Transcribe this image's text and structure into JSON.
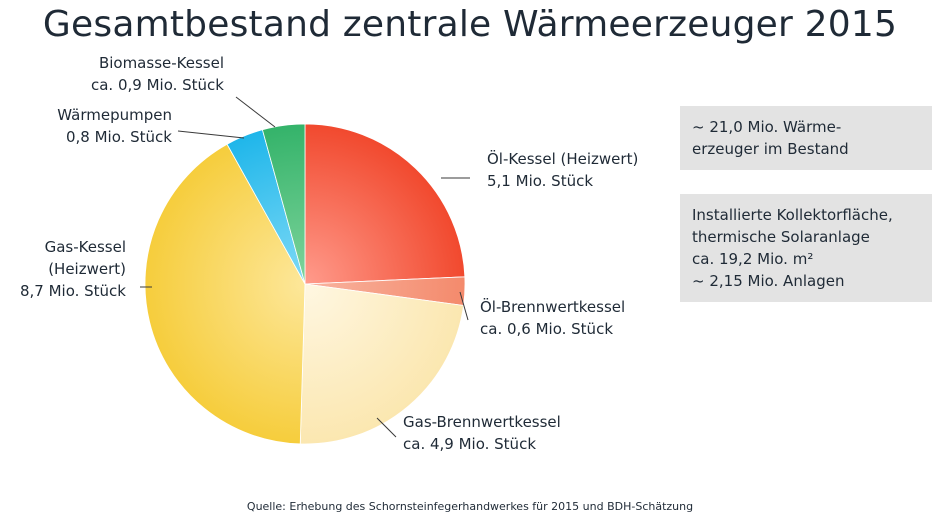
{
  "title": "Gesamtbestand zentrale Wärmeerzeuger 2015",
  "chart_data": {
    "type": "pie",
    "title": "Gesamtbestand zentrale Wärmeerzeuger 2015",
    "unit": "Mio. Stück",
    "slices": [
      {
        "name": "Öl-Kessel (Heizwert)",
        "value": 5.1,
        "value_label": "5,1 Mio. Stück",
        "color": "#f1492e",
        "color_light": "#ff9b8c",
        "label_lines": [
          "Öl-Kessel (Heizwert)",
          "5,1 Mio. Stück"
        ]
      },
      {
        "name": "Öl-Brennwertkessel",
        "value": 0.6,
        "value_label": "ca. 0,6 Mio. Stück",
        "color": "#f48a6c",
        "color_light": "#f8b4a0",
        "label_lines": [
          "Öl-Brennwertkessel",
          "ca. 0,6 Mio. Stück"
        ]
      },
      {
        "name": "Gas-Brennwertkessel",
        "value": 4.9,
        "value_label": "ca. 4,9 Mio. Stück",
        "color": "#fbe7b0",
        "color_light": "#fff7e2",
        "label_lines": [
          "Gas-Brennwertkessel",
          "ca. 4,9 Mio. Stück"
        ]
      },
      {
        "name": "Gas-Kessel (Heizwert)",
        "value": 8.7,
        "value_label": "8,7 Mio. Stück",
        "color": "#f6cd3c",
        "color_light": "#fde79a",
        "label_lines": [
          "Gas-Kessel",
          "(Heizwert)",
          "8,7 Mio. Stück"
        ]
      },
      {
        "name": "Wärmepumpen",
        "value": 0.8,
        "value_label": "0,8 Mio. Stück",
        "color": "#1fb6ea",
        "color_light": "#7fdaf6",
        "label_lines": [
          "Wärmepumpen",
          "0,8 Mio. Stück"
        ]
      },
      {
        "name": "Biomasse-Kessel",
        "value": 0.9,
        "value_label": "ca. 0,9 Mio. Stück",
        "color": "#34b36a",
        "color_light": "#7fd49c",
        "label_lines": [
          "Biomasse-Kessel",
          "ca. 0,9 Mio. Stück"
        ]
      }
    ],
    "start_angle_deg": 0,
    "direction": "clockwise",
    "legend": "none"
  },
  "info_boxes": [
    {
      "lines": [
        "~ 21,0 Mio. Wärme-",
        "erzeuger im Bestand"
      ]
    },
    {
      "lines": [
        "Installierte Kollektorfläche,",
        "thermische Solaranlage",
        "ca. 19,2 Mio. m²",
        "~ 2,15 Mio. Anlagen"
      ]
    }
  ],
  "source": "Quelle: Erhebung des Schornsteinfegerhandwerkes für 2015 und BDH-Schätzung"
}
